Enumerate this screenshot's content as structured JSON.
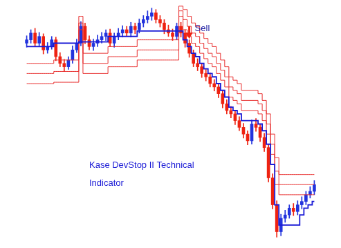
{
  "chart_data": {
    "type": "candlestick",
    "x": [
      0,
      1,
      2,
      3,
      4,
      5,
      6,
      7,
      8,
      9,
      10,
      11,
      12,
      13,
      14,
      15,
      16,
      17,
      18,
      19,
      20,
      21,
      22,
      23,
      24,
      25,
      26,
      27,
      28,
      29,
      30,
      31,
      32,
      33,
      34,
      35,
      36,
      37,
      38,
      39,
      40,
      41,
      42,
      43,
      44,
      45,
      46,
      47,
      48,
      49,
      50,
      51,
      52,
      53,
      54,
      55,
      56,
      57,
      58,
      59,
      60,
      61,
      62,
      63,
      64,
      65,
      66,
      67,
      68,
      69
    ],
    "xlim": [
      -1,
      70
    ],
    "ylim": [
      0,
      360
    ],
    "tick_labels": false,
    "grid": false,
    "candles": {
      "open": [
        300,
        305,
        315,
        300,
        310,
        290,
        295,
        305,
        280,
        270,
        265,
        275,
        290,
        300,
        325,
        305,
        295,
        300,
        305,
        310,
        315,
        300,
        310,
        315,
        320,
        315,
        325,
        320,
        330,
        335,
        340,
        345,
        335,
        330,
        320,
        315,
        310,
        325,
        315,
        300,
        285,
        270,
        265,
        255,
        250,
        240,
        235,
        225,
        210,
        200,
        195,
        185,
        175,
        165,
        155,
        180,
        175,
        160,
        145,
        100,
        60,
        20,
        40,
        45,
        55,
        50,
        60,
        65,
        75,
        80
      ],
      "high": [
        311,
        320,
        322,
        316,
        314,
        301,
        310,
        309,
        286,
        276,
        280,
        296,
        306,
        332,
        330,
        311,
        306,
        312,
        316,
        320,
        321,
        315,
        322,
        326,
        325,
        331,
        330,
        336,
        341,
        348,
        352,
        350,
        341,
        335,
        327,
        321,
        330,
        331,
        320,
        305,
        290,
        277,
        270,
        261,
        256,
        246,
        240,
        230,
        216,
        206,
        200,
        191,
        181,
        170,
        186,
        188,
        180,
        166,
        150,
        106,
        66,
        46,
        52,
        60,
        62,
        66,
        72,
        80,
        87,
        96
      ],
      "low": [
        294,
        300,
        295,
        296,
        284,
        285,
        291,
        274,
        265,
        258,
        261,
        270,
        286,
        296,
        299,
        290,
        289,
        295,
        300,
        304,
        295,
        294,
        305,
        309,
        310,
        309,
        314,
        315,
        324,
        330,
        334,
        330,
        324,
        314,
        310,
        304,
        305,
        309,
        294,
        279,
        265,
        259,
        249,
        244,
        235,
        229,
        219,
        204,
        195,
        189,
        179,
        170,
        159,
        149,
        150,
        169,
        154,
        139,
        94,
        54,
        12,
        14,
        34,
        40,
        44,
        45,
        54,
        60,
        70,
        75
      ],
      "close": [
        305,
        315,
        300,
        310,
        290,
        295,
        305,
        280,
        270,
        265,
        275,
        290,
        300,
        325,
        305,
        295,
        300,
        305,
        310,
        315,
        300,
        310,
        315,
        320,
        315,
        325,
        320,
        330,
        335,
        340,
        345,
        335,
        330,
        320,
        315,
        310,
        325,
        315,
        300,
        285,
        270,
        265,
        255,
        250,
        240,
        235,
        225,
        210,
        200,
        195,
        185,
        175,
        165,
        155,
        180,
        175,
        160,
        145,
        100,
        60,
        20,
        40,
        45,
        55,
        50,
        60,
        65,
        75,
        80,
        90
      ],
      "colors": [
        "#23d",
        "#23d",
        "#e21",
        "#23d",
        "#e21",
        "#23d",
        "#23d",
        "#e21",
        "#e21",
        "#e21",
        "#23d",
        "#23d",
        "#23d",
        "#23d",
        "#e21",
        "#e21",
        "#23d",
        "#23d",
        "#23d",
        "#23d",
        "#e21",
        "#23d",
        "#23d",
        "#23d",
        "#e21",
        "#23d",
        "#e21",
        "#23d",
        "#23d",
        "#23d",
        "#23d",
        "#e21",
        "#e21",
        "#e21",
        "#e21",
        "#e21",
        "#23d",
        "#e21",
        "#e21",
        "#e21",
        "#e21",
        "#e21",
        "#e21",
        "#e21",
        "#e21",
        "#e21",
        "#e21",
        "#e21",
        "#e21",
        "#e21",
        "#e21",
        "#e21",
        "#e21",
        "#e21",
        "#23d",
        "#e21",
        "#e21",
        "#e21",
        "#e21",
        "#e21",
        "#e21",
        "#23d",
        "#23d",
        "#23d",
        "#e21",
        "#23d",
        "#23d",
        "#23d",
        "#23d",
        "#23d"
      ]
    },
    "series": [
      {
        "type": "line",
        "color": "#1a1ad6",
        "line_style": "stepped",
        "values": [
          295,
          295,
          295,
          295,
          295,
          295,
          295,
          300,
          300,
          300,
          300,
          300,
          300,
          302,
          302,
          302,
          302,
          302,
          302,
          302,
          310,
          310,
          310,
          310,
          310,
          310,
          310,
          318,
          318,
          318,
          318,
          318,
          318,
          318,
          318,
          318,
          318,
          318,
          305,
          295,
          285,
          280,
          270,
          262,
          255,
          250,
          240,
          230,
          220,
          205,
          200,
          195,
          185,
          185,
          185,
          185,
          180,
          170,
          150,
          120,
          60,
          30,
          30,
          30,
          30,
          30,
          45,
          55,
          60,
          65
        ]
      },
      {
        "type": "line",
        "color": "#e83030",
        "line_style": "stepped",
        "values": [
          270,
          270,
          270,
          270,
          270,
          270,
          270,
          275,
          275,
          275,
          275,
          275,
          275,
          340,
          285,
          285,
          285,
          285,
          285,
          285,
          295,
          295,
          295,
          295,
          295,
          295,
          295,
          305,
          305,
          305,
          305,
          305,
          305,
          305,
          305,
          305,
          305,
          340,
          320,
          310,
          300,
          295,
          285,
          277,
          270,
          265,
          255,
          245,
          235,
          220,
          215,
          210,
          200,
          200,
          200,
          200,
          195,
          185,
          165,
          135,
          90,
          75,
          75,
          75,
          75,
          75,
          75,
          75,
          75,
          75
        ]
      },
      {
        "type": "line",
        "color": "#e83030",
        "line_style": "stepped",
        "values": [
          255,
          255,
          255,
          255,
          255,
          255,
          255,
          258,
          258,
          258,
          258,
          258,
          258,
          330,
          270,
          270,
          270,
          270,
          270,
          270,
          280,
          280,
          280,
          280,
          280,
          280,
          280,
          290,
          290,
          290,
          290,
          290,
          290,
          290,
          290,
          290,
          290,
          348,
          335,
          325,
          315,
          310,
          300,
          292,
          285,
          280,
          270,
          260,
          250,
          235,
          230,
          225,
          215,
          215,
          215,
          215,
          210,
          200,
          180,
          150,
          110,
          90,
          90,
          90,
          90,
          90,
          90,
          90,
          90,
          90
        ]
      },
      {
        "type": "line",
        "color": "#e83030",
        "line_style": "stepped",
        "values": [
          240,
          240,
          240,
          240,
          240,
          240,
          240,
          242,
          242,
          242,
          242,
          242,
          242,
          320,
          255,
          255,
          255,
          255,
          255,
          255,
          265,
          265,
          265,
          265,
          265,
          265,
          265,
          275,
          275,
          275,
          275,
          275,
          275,
          275,
          275,
          275,
          275,
          355,
          350,
          340,
          330,
          325,
          315,
          307,
          300,
          295,
          285,
          275,
          265,
          250,
          245,
          240,
          230,
          230,
          230,
          230,
          225,
          215,
          195,
          165,
          130,
          105,
          105,
          105,
          105,
          105,
          105,
          105,
          105,
          105
        ]
      }
    ],
    "annotations": [
      {
        "text": "Sell",
        "x": 39,
        "y": 325,
        "marker": "arrow_down",
        "color": "#e21"
      },
      {
        "text": "Kase DevStop II Technical Indicator",
        "x": 15,
        "y": 125
      }
    ]
  }
}
